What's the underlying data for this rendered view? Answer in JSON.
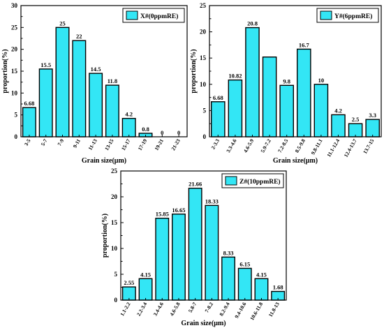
{
  "chart_data": [
    {
      "type": "bar",
      "legend_label": "X#(0ppmRE)",
      "legend_placement": "top-right",
      "bar_color": "#33e6f5",
      "xlabel": "Grain size(μm)",
      "ylabel": "proportion(%)",
      "ylim": [
        0,
        30
      ],
      "yticks": [
        0,
        5,
        10,
        15,
        20,
        25,
        30
      ],
      "categories": [
        "3-5",
        "5-7",
        "7-9",
        "9-11",
        "11-13",
        "13-15",
        "15-17",
        "17-19",
        "19-21",
        "21-23"
      ],
      "values": [
        6.68,
        15.5,
        25,
        22,
        14.5,
        11.8,
        4.2,
        0.8,
        0,
        0
      ],
      "value_labels": [
        "6.68",
        "15.5",
        "25",
        "22",
        "14.5",
        "11.8",
        "4.2",
        "0.8",
        "0",
        "0"
      ]
    },
    {
      "type": "bar",
      "legend_label": "Y#(6ppmRE)",
      "legend_placement": "top-right",
      "bar_color": "#33e6f5",
      "xlabel": "Grain size(μm)",
      "ylabel": "proportion(%)",
      "ylim": [
        0,
        25
      ],
      "yticks": [
        0,
        5,
        10,
        15,
        20,
        25
      ],
      "categories": [
        "2-3.3",
        "3.3-4.6",
        "4.6-5.9",
        "5.9-7.2",
        "7.2-8.5",
        "8.5-9.8",
        "9.8-11.1",
        "11.1-12.4",
        "12.4-13.7",
        "13.7-15"
      ],
      "values": [
        6.68,
        10.82,
        20.8,
        15.2,
        9.8,
        16.7,
        10,
        4.2,
        2.5,
        3.3
      ],
      "value_labels": [
        "6.68",
        "10.82",
        "20.8",
        "",
        "9.8",
        "16.7",
        "10",
        "4.2",
        "2.5",
        "3.3"
      ]
    },
    {
      "type": "bar",
      "legend_label": "Z#(10ppmRE)",
      "legend_placement": "top-right",
      "bar_color": "#33e6f5",
      "xlabel": "Grain size(μm)",
      "ylabel": "proportion(%)",
      "ylim": [
        0,
        25
      ],
      "yticks": [
        0,
        5,
        10,
        15,
        20,
        25
      ],
      "categories": [
        "1.1-2.2",
        "2.2-3.4",
        "3.4-4.6",
        "4.6-5.8",
        "5.8-7",
        "7-8.2",
        "8.2-9.4",
        "9.4-10.6",
        "10.6-11.8",
        "11.8-13"
      ],
      "values": [
        2.55,
        4.15,
        15.85,
        16.65,
        21.66,
        18.33,
        8.33,
        6.15,
        4.15,
        1.68
      ],
      "value_labels": [
        "2.55",
        "4.15",
        "15.85",
        "16.65",
        "21.66",
        "18.33",
        "8.33",
        "6.15",
        "4.15",
        "1.68"
      ]
    }
  ]
}
